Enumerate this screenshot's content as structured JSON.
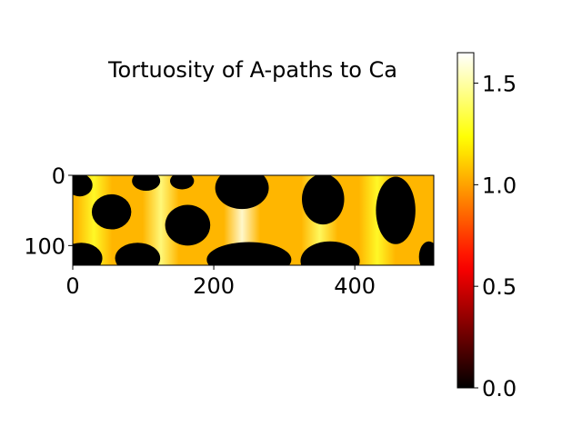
{
  "chart_data": {
    "type": "heatmap",
    "title": "Tortuosity of A-paths to Ca",
    "xlabel": "",
    "ylabel": "",
    "xlim": [
      0,
      512
    ],
    "ylim": [
      128,
      0
    ],
    "x_ticks": [
      0,
      200,
      400
    ],
    "y_ticks": [
      0,
      100
    ],
    "x_tick_labels": [
      "0",
      "200",
      "400"
    ],
    "y_tick_labels": [
      "0",
      "100"
    ],
    "colormap": "hot",
    "colorbar": {
      "range": [
        0.0,
        1.65
      ],
      "ticks": [
        0.0,
        0.5,
        1.0,
        1.5
      ],
      "tick_labels": [
        "0.0",
        "0.5",
        "1.0",
        "1.5"
      ]
    },
    "background_value": 1.05,
    "pores": [
      {
        "cx": 10,
        "cy": 14,
        "rx": 18,
        "ry": 16,
        "value": 0
      },
      {
        "cx": 55,
        "cy": 52,
        "rx": 28,
        "ry": 25,
        "value": 0
      },
      {
        "cx": 104,
        "cy": 8,
        "rx": 20,
        "ry": 14,
        "value": 0
      },
      {
        "cx": 155,
        "cy": 8,
        "rx": 17,
        "ry": 12,
        "value": 0
      },
      {
        "cx": 163,
        "cy": 71,
        "rx": 32,
        "ry": 29,
        "value": 0
      },
      {
        "cx": 240,
        "cy": 18,
        "rx": 38,
        "ry": 30,
        "value": 0
      },
      {
        "cx": 355,
        "cy": 34,
        "rx": 30,
        "ry": 36,
        "value": 0
      },
      {
        "cx": 458,
        "cy": 50,
        "rx": 28,
        "ry": 48,
        "value": 0
      },
      {
        "cx": 12,
        "cy": 118,
        "rx": 30,
        "ry": 22,
        "value": 0
      },
      {
        "cx": 92,
        "cy": 118,
        "rx": 32,
        "ry": 22,
        "value": 0
      },
      {
        "cx": 250,
        "cy": 120,
        "rx": 60,
        "ry": 25,
        "value": 0
      },
      {
        "cx": 365,
        "cy": 122,
        "rx": 42,
        "ry": 28,
        "value": 0
      },
      {
        "cx": 505,
        "cy": 116,
        "rx": 14,
        "ry": 22,
        "value": 0
      }
    ],
    "bright_bands": [
      {
        "x": 125,
        "value": 1.45
      },
      {
        "x": 240,
        "value": 1.6
      },
      {
        "x": 350,
        "value": 1.4
      },
      {
        "x": 432,
        "value": 1.3
      },
      {
        "x": 30,
        "value": 1.3
      }
    ]
  }
}
